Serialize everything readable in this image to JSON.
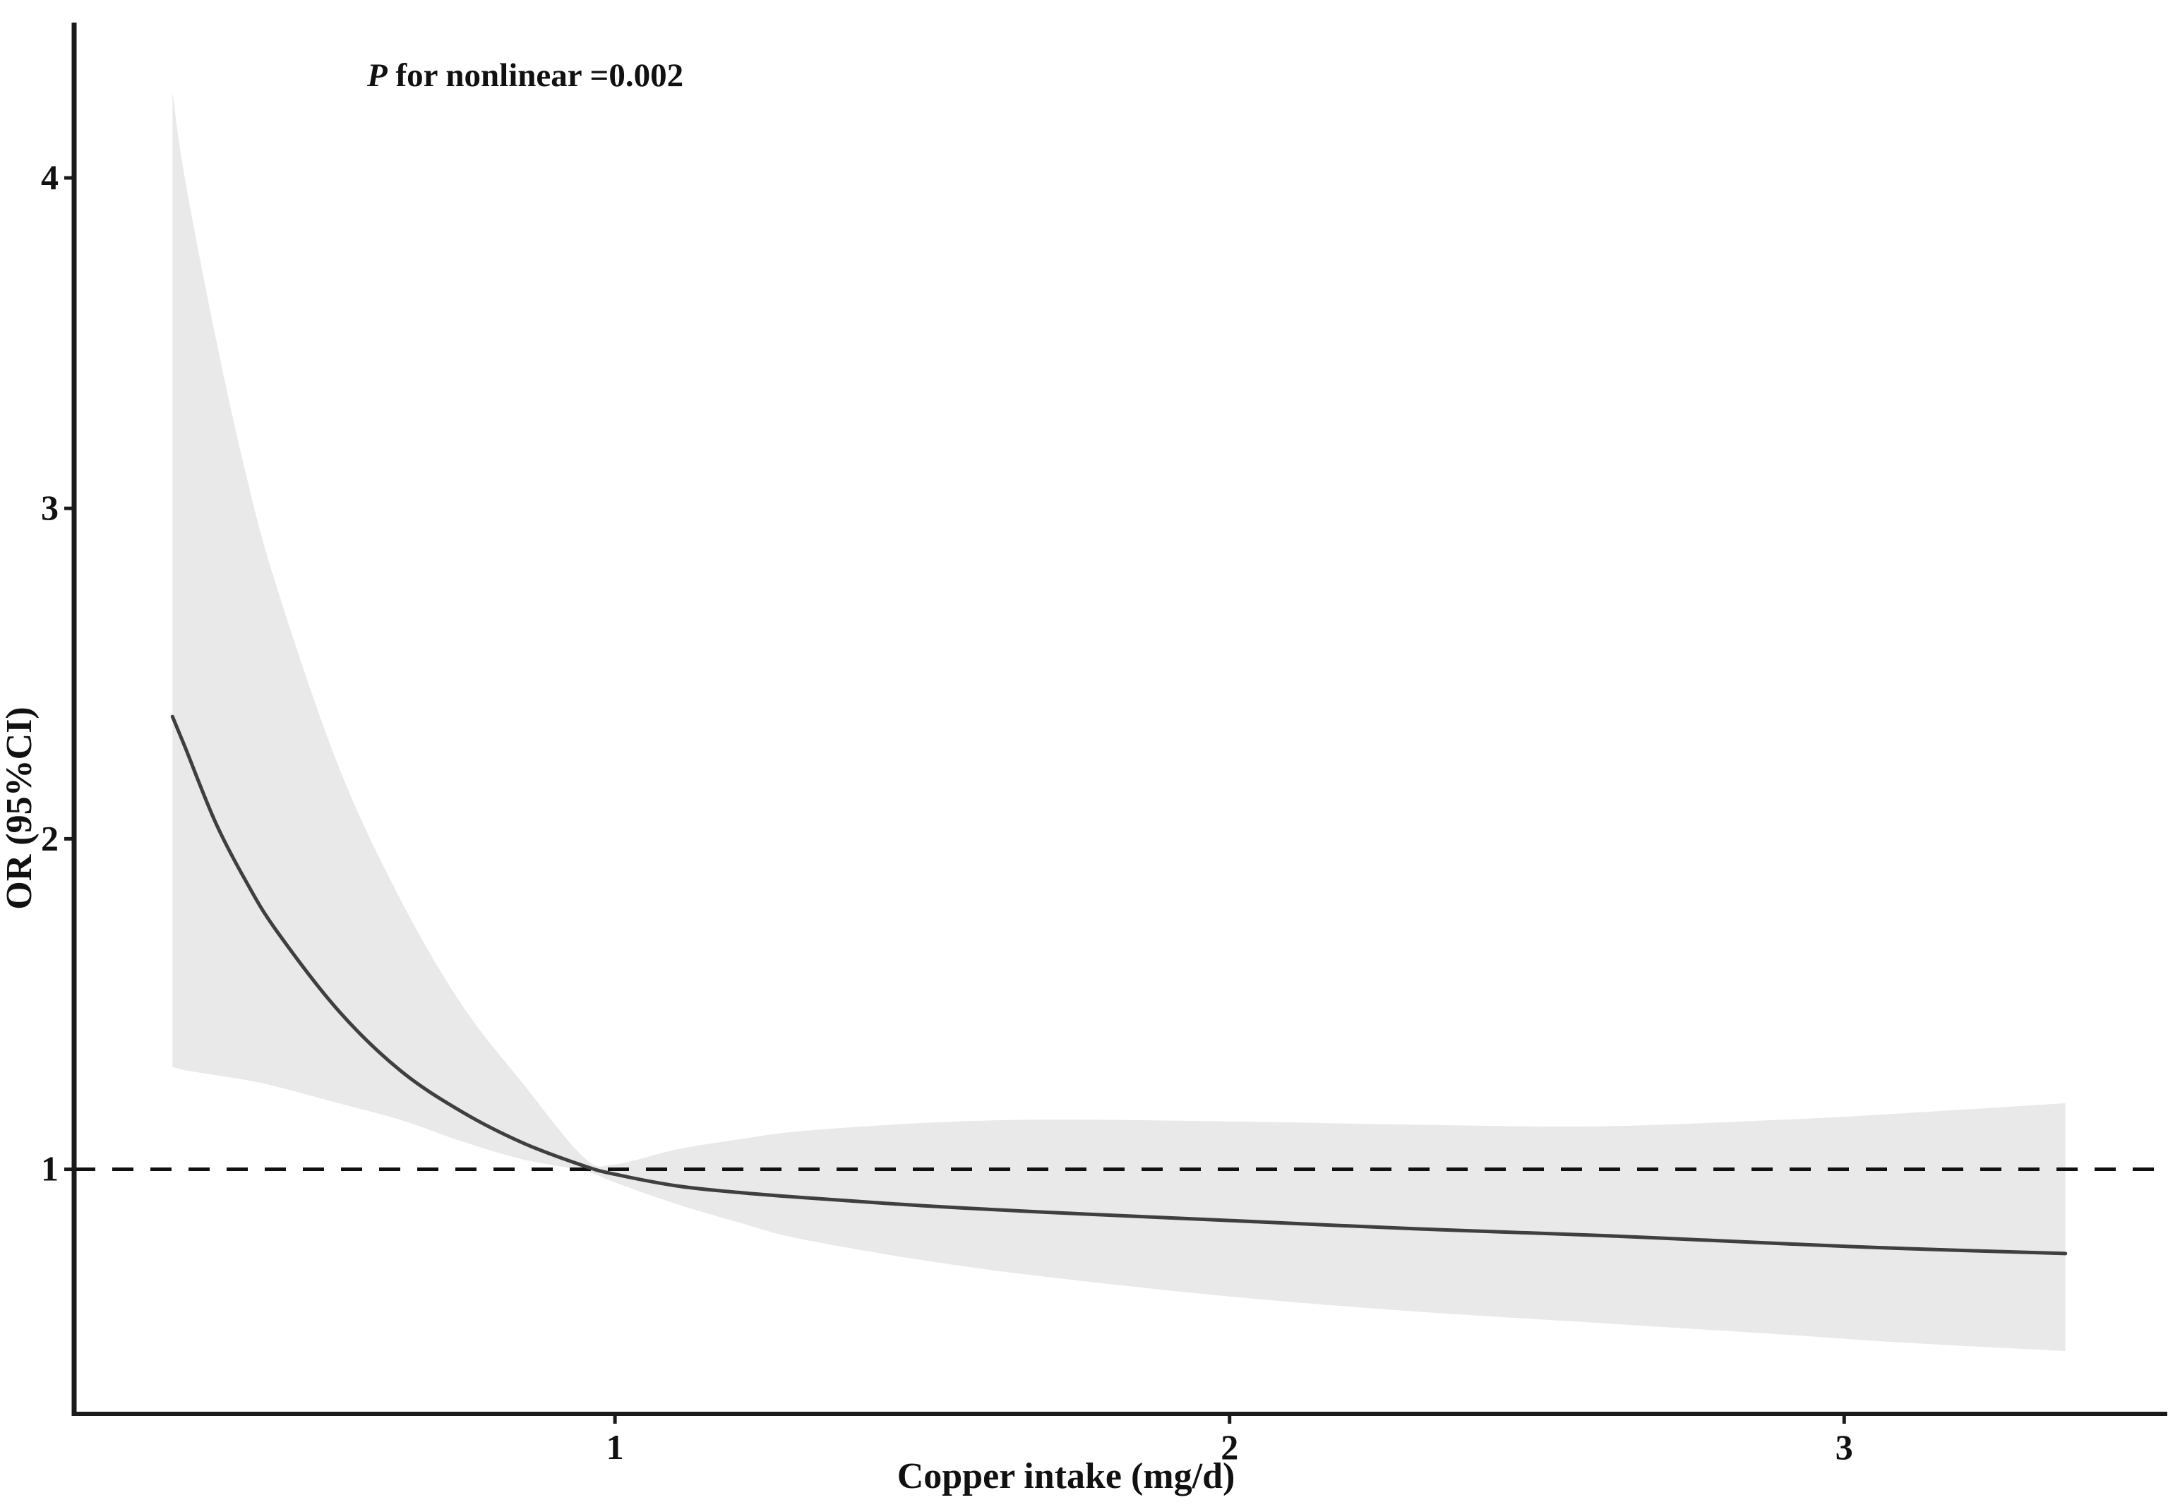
{
  "figure": {
    "annotation": {
      "p": "P",
      "rest": " for nonlinear =0.002"
    },
    "xlabel": "Copper intake (mg/d)",
    "ylabel": "OR (95%CI)"
  },
  "colors": {
    "band": "#e9e9e9",
    "curve": "#3f3f3f",
    "axis": "#1a1a1a",
    "dashed": "#111111",
    "text": "#111111"
  },
  "chart_data": {
    "type": "line",
    "title": "",
    "annotation": "P for nonlinear =0.002",
    "xlabel": "Copper intake (mg/d)",
    "ylabel": "OR (95%CI)",
    "x_ticks": [
      1,
      2,
      3
    ],
    "y_ticks": [
      1,
      2,
      3,
      4
    ],
    "xlim": [
      0.12,
      3.52
    ],
    "ylim": [
      0.26,
      4.47
    ],
    "reference_line_or": 1,
    "x_range_mgd": [
      0.28,
      3.36
    ],
    "legend": "none",
    "grid": false,
    "x": [
      0.28,
      0.3,
      0.35,
      0.4,
      0.45,
      0.55,
      0.65,
      0.75,
      0.85,
      0.95,
      1.0,
      1.1,
      1.2,
      1.3,
      1.5,
      1.7,
      2.0,
      2.3,
      2.6,
      2.9,
      3.1,
      3.36
    ],
    "or": [
      2.37,
      2.28,
      2.05,
      1.87,
      1.72,
      1.48,
      1.3,
      1.175,
      1.08,
      1.01,
      0.985,
      0.95,
      0.93,
      0.915,
      0.89,
      0.87,
      0.845,
      0.82,
      0.8,
      0.775,
      0.76,
      0.745
    ],
    "ci_lower": [
      1.31,
      1.3,
      1.285,
      1.27,
      1.25,
      1.2,
      1.15,
      1.085,
      1.03,
      0.995,
      0.96,
      0.895,
      0.84,
      0.79,
      0.725,
      0.675,
      0.615,
      0.57,
      0.535,
      0.5,
      0.475,
      0.45
    ],
    "ci_upper": [
      4.26,
      4.0,
      3.52,
      3.1,
      2.76,
      2.22,
      1.82,
      1.5,
      1.26,
      1.035,
      1.015,
      1.06,
      1.09,
      1.115,
      1.14,
      1.15,
      1.145,
      1.135,
      1.13,
      1.15,
      1.17,
      1.2
    ]
  }
}
